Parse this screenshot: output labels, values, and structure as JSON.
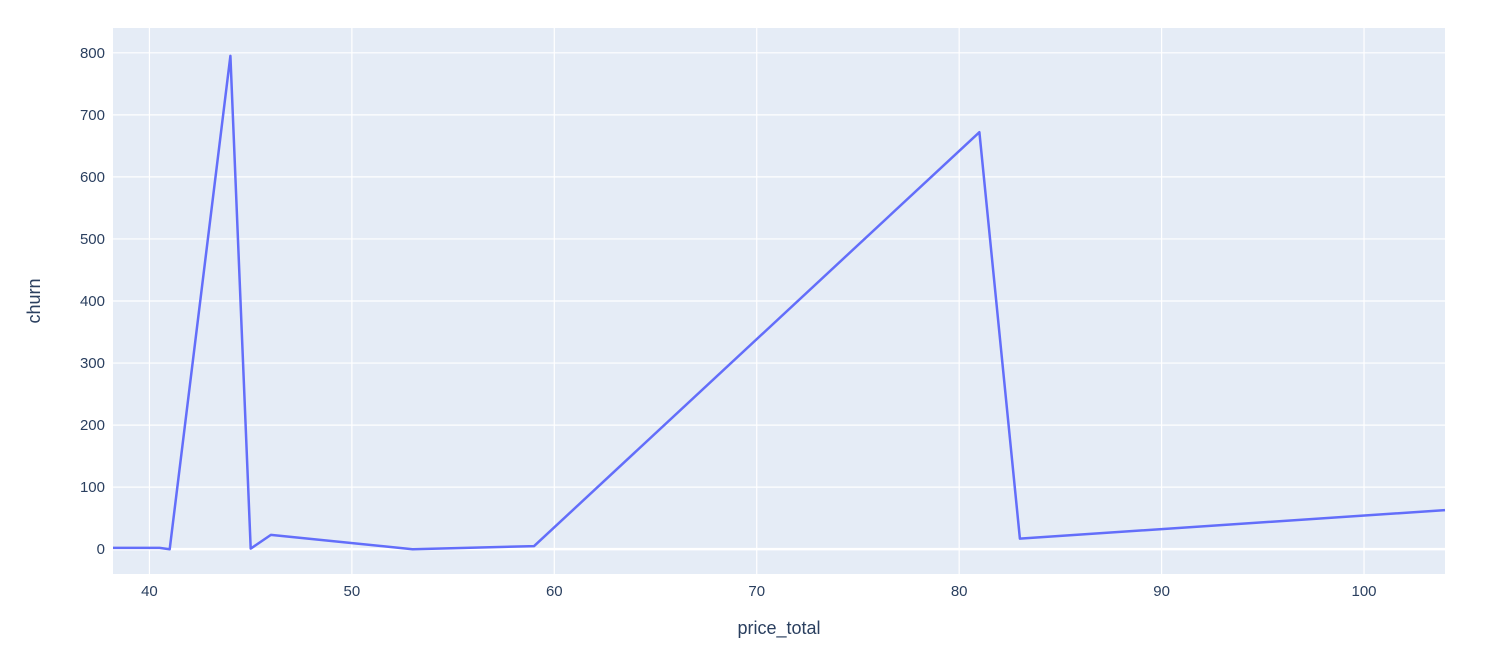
{
  "chart_data": {
    "type": "line",
    "title": "",
    "xlabel": "price_total",
    "ylabel": "churn",
    "xlim": [
      38.2,
      104
    ],
    "ylim": [
      -40,
      840
    ],
    "x_ticks": [
      40,
      50,
      60,
      70,
      80,
      90,
      100
    ],
    "y_ticks": [
      0,
      100,
      200,
      300,
      400,
      500,
      600,
      700,
      800
    ],
    "grid": true,
    "legend": "none",
    "colors": {
      "plot_bg": "#e5ecf6",
      "grid": "#ffffff",
      "line": "#636efa",
      "text": "#2a3f5f"
    },
    "series": [
      {
        "x": [
          38.2,
          40,
          40.5,
          41,
          44,
          45,
          46,
          53,
          59,
          81,
          83,
          104
        ],
        "y": [
          2,
          2,
          2,
          0,
          795,
          1,
          23,
          0,
          5,
          672,
          17,
          63
        ]
      }
    ]
  }
}
